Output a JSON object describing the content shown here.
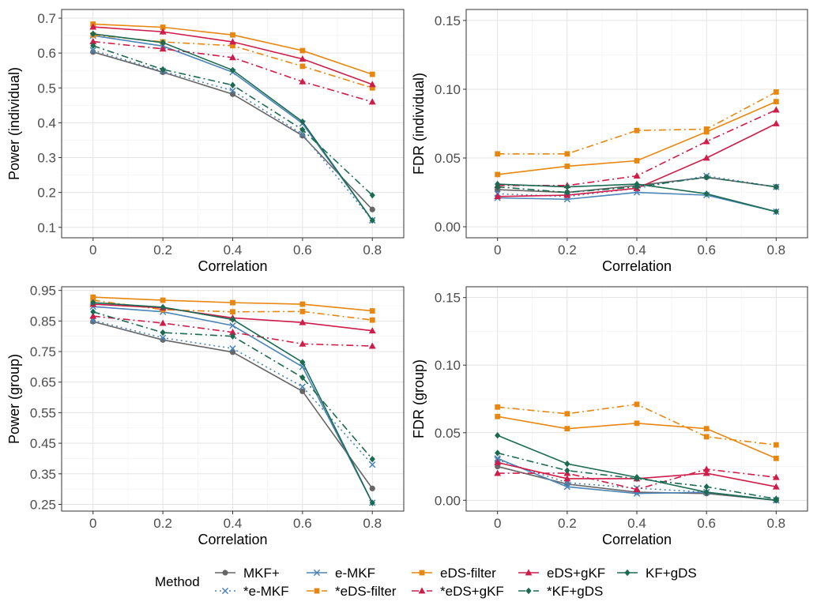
{
  "chart_data": [
    {
      "type": "line",
      "panel": "top-left",
      "xlabel": "Correlation",
      "ylabel": "Power (individual)",
      "x": [
        0,
        0.2,
        0.4,
        0.6,
        0.8
      ],
      "x_tick_labels": [
        "0",
        "0.2",
        "0.4",
        "0.6",
        "0.8"
      ],
      "xlim": [
        -0.09,
        0.89
      ],
      "ylim": [
        0.07,
        0.725
      ],
      "y_ticks": [
        0.1,
        0.2,
        0.3,
        0.4,
        0.5,
        0.6,
        0.7
      ],
      "y_tick_labels": [
        "0.1",
        "0.2",
        "0.3",
        "0.4",
        "0.5",
        "0.6",
        "0.7"
      ],
      "series": [
        {
          "name": "MKF+",
          "values": [
            0.603,
            0.545,
            0.482,
            0.363,
            0.151
          ]
        },
        {
          "name": "*e-MKF",
          "values": [
            0.608,
            0.548,
            0.492,
            0.367,
            0.12
          ]
        },
        {
          "name": "e-MKF",
          "values": [
            0.65,
            0.62,
            0.545,
            0.398,
            0.12
          ]
        },
        {
          "name": "*eDS-filter",
          "values": [
            0.652,
            0.632,
            0.621,
            0.562,
            0.5
          ]
        },
        {
          "name": "eDS-filter",
          "values": [
            0.683,
            0.674,
            0.652,
            0.607,
            0.539
          ]
        },
        {
          "name": "*eDS+gKF",
          "values": [
            0.633,
            0.612,
            0.587,
            0.518,
            0.46
          ]
        },
        {
          "name": "eDS+gKF",
          "values": [
            0.675,
            0.661,
            0.632,
            0.583,
            0.51
          ]
        },
        {
          "name": "*KF+gDS",
          "values": [
            0.621,
            0.553,
            0.508,
            0.38,
            0.192
          ]
        },
        {
          "name": "KF+gDS",
          "values": [
            0.655,
            0.63,
            0.551,
            0.403,
            0.12
          ]
        }
      ]
    },
    {
      "type": "line",
      "panel": "top-right",
      "xlabel": "Correlation",
      "ylabel": "FDR (individual)",
      "x": [
        0,
        0.2,
        0.4,
        0.6,
        0.8
      ],
      "x_tick_labels": [
        "0",
        "0.2",
        "0.4",
        "0.6",
        "0.8"
      ],
      "xlim": [
        -0.09,
        0.89
      ],
      "ylim": [
        -0.008,
        0.158
      ],
      "y_ticks": [
        0.0,
        0.05,
        0.1,
        0.15
      ],
      "y_tick_labels": [
        "0.00",
        "0.05",
        "0.10",
        "0.15"
      ],
      "series": [
        {
          "name": "MKF+",
          "values": [
            0.027,
            0.025,
            0.03,
            0.036,
            0.029
          ]
        },
        {
          "name": "*e-MKF",
          "values": [
            0.024,
            0.022,
            0.028,
            0.037,
            0.029
          ]
        },
        {
          "name": "e-MKF",
          "values": [
            0.021,
            0.02,
            0.025,
            0.023,
            0.011
          ]
        },
        {
          "name": "*eDS-filter",
          "values": [
            0.053,
            0.053,
            0.07,
            0.071,
            0.098
          ]
        },
        {
          "name": "eDS-filter",
          "values": [
            0.038,
            0.044,
            0.048,
            0.069,
            0.091
          ]
        },
        {
          "name": "*eDS+gKF",
          "values": [
            0.03,
            0.03,
            0.037,
            0.062,
            0.085
          ]
        },
        {
          "name": "eDS+gKF",
          "values": [
            0.022,
            0.023,
            0.028,
            0.05,
            0.075
          ]
        },
        {
          "name": "*KF+gDS",
          "values": [
            0.029,
            0.025,
            0.029,
            0.036,
            0.029
          ]
        },
        {
          "name": "KF+gDS",
          "values": [
            0.031,
            0.029,
            0.031,
            0.024,
            0.011
          ]
        }
      ]
    },
    {
      "type": "line",
      "panel": "bottom-left",
      "xlabel": "Correlation",
      "ylabel": "Power (group)",
      "x": [
        0,
        0.2,
        0.4,
        0.6,
        0.8
      ],
      "x_tick_labels": [
        "0",
        "0.2",
        "0.4",
        "0.6",
        "0.8"
      ],
      "xlim": [
        -0.09,
        0.89
      ],
      "ylim": [
        0.228,
        0.962
      ],
      "y_ticks": [
        0.25,
        0.35,
        0.45,
        0.55,
        0.65,
        0.75,
        0.85,
        0.95
      ],
      "y_tick_labels": [
        "0.25",
        "0.35",
        "0.45",
        "0.55",
        "0.65",
        "0.75",
        "0.85",
        "0.95"
      ],
      "series": [
        {
          "name": "MKF+",
          "values": [
            0.848,
            0.788,
            0.748,
            0.62,
            0.302
          ]
        },
        {
          "name": "*e-MKF",
          "values": [
            0.852,
            0.795,
            0.76,
            0.635,
            0.38
          ]
        },
        {
          "name": "e-MKF",
          "values": [
            0.897,
            0.88,
            0.835,
            0.7,
            0.255
          ]
        },
        {
          "name": "*eDS-filter",
          "values": [
            0.918,
            0.887,
            0.88,
            0.881,
            0.853
          ]
        },
        {
          "name": "eDS-filter",
          "values": [
            0.928,
            0.918,
            0.91,
            0.905,
            0.883
          ]
        },
        {
          "name": "*eDS+gKF",
          "values": [
            0.866,
            0.843,
            0.813,
            0.775,
            0.768
          ]
        },
        {
          "name": "eDS+gKF",
          "values": [
            0.905,
            0.893,
            0.86,
            0.845,
            0.818
          ]
        },
        {
          "name": "*KF+gDS",
          "values": [
            0.88,
            0.812,
            0.8,
            0.665,
            0.398
          ]
        },
        {
          "name": "KF+gDS",
          "values": [
            0.91,
            0.895,
            0.855,
            0.715,
            0.255
          ]
        }
      ]
    },
    {
      "type": "line",
      "panel": "bottom-right",
      "xlabel": "Correlation",
      "ylabel": "FDR (group)",
      "x": [
        0,
        0.2,
        0.4,
        0.6,
        0.8
      ],
      "x_tick_labels": [
        "0",
        "0.2",
        "0.4",
        "0.6",
        "0.8"
      ],
      "xlim": [
        -0.09,
        0.89
      ],
      "ylim": [
        -0.008,
        0.158
      ],
      "y_ticks": [
        0.0,
        0.05,
        0.1,
        0.15
      ],
      "y_tick_labels": [
        "0.00",
        "0.05",
        "0.10",
        "0.15"
      ],
      "series": [
        {
          "name": "MKF+",
          "values": [
            0.025,
            0.012,
            0.006,
            0.005,
            0.0
          ]
        },
        {
          "name": "*e-MKF",
          "values": [
            0.03,
            0.013,
            0.009,
            0.006,
            0.0
          ]
        },
        {
          "name": "e-MKF",
          "values": [
            0.031,
            0.01,
            0.005,
            0.006,
            0.0
          ]
        },
        {
          "name": "*eDS-filter",
          "values": [
            0.069,
            0.064,
            0.071,
            0.047,
            0.041
          ]
        },
        {
          "name": "eDS-filter",
          "values": [
            0.062,
            0.053,
            0.057,
            0.053,
            0.031
          ]
        },
        {
          "name": "*eDS+gKF",
          "values": [
            0.02,
            0.02,
            0.008,
            0.023,
            0.017
          ]
        },
        {
          "name": "eDS+gKF",
          "values": [
            0.028,
            0.016,
            0.016,
            0.02,
            0.01
          ]
        },
        {
          "name": "*KF+gDS",
          "values": [
            0.035,
            0.022,
            0.016,
            0.01,
            0.001
          ]
        },
        {
          "name": "KF+gDS",
          "values": [
            0.048,
            0.027,
            0.017,
            0.006,
            0.0
          ]
        }
      ]
    }
  ],
  "legend": {
    "title": "Method",
    "position": "bottom",
    "items": [
      {
        "name": "MKF+",
        "color": "#666666",
        "dash": "solid",
        "shape": "circle"
      },
      {
        "name": "*e-MKF",
        "color": "#4A84B8",
        "dash": "dotted",
        "shape": "cross"
      },
      {
        "name": "e-MKF",
        "color": "#4A84B8",
        "dash": "solid",
        "shape": "cross"
      },
      {
        "name": "*eDS-filter",
        "color": "#E8870F",
        "dash": "dashdot",
        "shape": "square"
      },
      {
        "name": "eDS-filter",
        "color": "#E8870F",
        "dash": "solid",
        "shape": "square"
      },
      {
        "name": "*eDS+gKF",
        "color": "#D01C48",
        "dash": "dashdot",
        "shape": "triangle"
      },
      {
        "name": "eDS+gKF",
        "color": "#D01C48",
        "dash": "solid",
        "shape": "triangle"
      },
      {
        "name": "*KF+gDS",
        "color": "#1B6B52",
        "dash": "dashdot",
        "shape": "diamond"
      },
      {
        "name": "KF+gDS",
        "color": "#1B6B52",
        "dash": "solid",
        "shape": "diamond"
      }
    ]
  }
}
